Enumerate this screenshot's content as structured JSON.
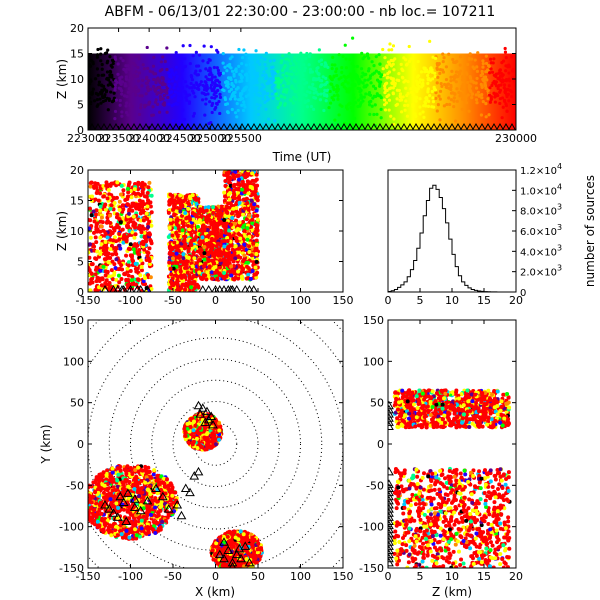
{
  "title": "ABFM - 06/13/01 22:30:00 - 23:00:00 - nb loc.= 107211",
  "chart_data": [
    {
      "id": "time-height",
      "type": "scatter",
      "xlabel": "Time (UT)",
      "ylabel": "Z (km)",
      "xlim": [
        223000,
        230000
      ],
      "ylim": [
        0,
        20
      ],
      "xticks": [
        223000,
        223500,
        224000,
        224500,
        225000,
        225500,
        230000
      ],
      "yticks": [
        0,
        5,
        10,
        15,
        20
      ],
      "color_encoding": "time",
      "colors": [
        "#000000",
        "#5a008c",
        "#2200ff",
        "#00c8ff",
        "#00ff8c",
        "#00ff00",
        "#ffff00",
        "#ff8c00",
        "#ff0000"
      ],
      "series": [
        {
          "type": "band",
          "z_min": 0,
          "z_max": 15,
          "dense_z": [
            5,
            12
          ]
        },
        {
          "type": "stations",
          "z": 0
        }
      ]
    },
    {
      "id": "x-height",
      "type": "scatter",
      "ylabel": "Z (km)",
      "xlim": [
        -150,
        150
      ],
      "ylim": [
        0,
        20
      ],
      "xticks": [
        -150,
        -100,
        -50,
        0,
        50,
        100,
        150
      ],
      "yticks": [
        0,
        5,
        10,
        15,
        20
      ],
      "clusters": [
        {
          "x": [
            -150,
            -75
          ],
          "z": [
            0,
            18
          ]
        },
        {
          "x": [
            -55,
            -20
          ],
          "z": [
            0,
            16
          ]
        },
        {
          "x": [
            -20,
            15
          ],
          "z": [
            2,
            14
          ]
        },
        {
          "x": [
            10,
            50
          ],
          "z": [
            2,
            20
          ]
        }
      ],
      "stations_x": [
        -130,
        -120,
        -115,
        -110,
        -108,
        -100,
        -92,
        -88,
        -80,
        -15,
        -8,
        0,
        5,
        10,
        15,
        18,
        20,
        25,
        35,
        40,
        45
      ]
    },
    {
      "id": "altitude-histogram",
      "type": "bar",
      "xlim": [
        0,
        20
      ],
      "ylim": [
        0,
        12000
      ],
      "xticks": [
        0,
        5,
        10,
        15,
        20
      ],
      "yticks": [
        0,
        2000,
        4000,
        6000,
        8000,
        10000,
        12000
      ],
      "ytick_labels": [
        {
          "mant": "0",
          "exp": "0"
        },
        {
          "mant": "2.0×10",
          "exp": "3"
        },
        {
          "mant": "4.0×10",
          "exp": "3"
        },
        {
          "mant": "6.0×10",
          "exp": "3"
        },
        {
          "mant": "8.0×10",
          "exp": "3"
        },
        {
          "mant": "1.0×10",
          "exp": "4"
        },
        {
          "mant": "1.2×10",
          "exp": "4"
        }
      ],
      "ylabel": "number of sources",
      "bin_width": 0.5,
      "bins_start": [
        0,
        0.5,
        1,
        1.5,
        2,
        2.5,
        3,
        3.5,
        4,
        4.5,
        5,
        5.5,
        6,
        6.5,
        7,
        7.5,
        8,
        8.5,
        9,
        9.5,
        10,
        10.5,
        11,
        11.5,
        12,
        12.5,
        13,
        13.5,
        14,
        14.5,
        15,
        15.5,
        16,
        16.5,
        17,
        17.5,
        18,
        18.5,
        19,
        19.5
      ],
      "values": [
        50,
        120,
        250,
        450,
        700,
        1000,
        1500,
        2200,
        3100,
        4300,
        5800,
        7500,
        9000,
        10200,
        10500,
        10100,
        9300,
        8200,
        6800,
        5200,
        3700,
        2500,
        1600,
        1000,
        650,
        400,
        250,
        160,
        100,
        60,
        40,
        25,
        15,
        10,
        5,
        3,
        2,
        0,
        0,
        0
      ]
    },
    {
      "id": "plan-view",
      "type": "scatter",
      "xlabel": "X (km)",
      "ylabel": "Y (km)",
      "xlim": [
        -150,
        150
      ],
      "ylim": [
        -150,
        150
      ],
      "xticks": [
        -150,
        -100,
        -50,
        0,
        50,
        100,
        150
      ],
      "yticks": [
        -150,
        -100,
        -50,
        0,
        50,
        100,
        150
      ],
      "range_rings_km": [
        25,
        50,
        75,
        100,
        125,
        150,
        175,
        200
      ],
      "clusters": [
        {
          "cx": -15,
          "cy": 15,
          "rx": 22,
          "ry": 22
        },
        {
          "cx": -100,
          "cy": -70,
          "rx": 55,
          "ry": 45
        },
        {
          "cx": 25,
          "cy": -130,
          "rx": 30,
          "ry": 25
        }
      ],
      "stations": [
        [
          -112,
          -65
        ],
        [
          -108,
          -72
        ],
        [
          -103,
          -61
        ],
        [
          -95,
          -68
        ],
        [
          -88,
          -82
        ],
        [
          -80,
          -70
        ],
        [
          -70,
          -55
        ],
        [
          -62,
          -65
        ],
        [
          -55,
          -80
        ],
        [
          -45,
          -75
        ],
        [
          -40,
          -88
        ],
        [
          -130,
          -75
        ],
        [
          -120,
          -85
        ],
        [
          -115,
          -90
        ],
        [
          -105,
          -95
        ],
        [
          -95,
          -78
        ],
        [
          -125,
          -80
        ],
        [
          -20,
          45
        ],
        [
          -15,
          42
        ],
        [
          -10,
          38
        ],
        [
          -5,
          32
        ],
        [
          -12,
          25
        ],
        [
          -18,
          35
        ],
        [
          -8,
          28
        ],
        [
          -3,
          22
        ],
        [
          5,
          -135
        ],
        [
          10,
          -140
        ],
        [
          15,
          -130
        ],
        [
          20,
          -145
        ],
        [
          25,
          -135
        ],
        [
          30,
          -140
        ],
        [
          35,
          -125
        ],
        [
          40,
          -145
        ],
        [
          10,
          -120
        ],
        [
          20,
          -150
        ],
        [
          28,
          -128
        ],
        [
          -35,
          -55
        ],
        [
          -30,
          -60
        ],
        [
          -25,
          -40
        ],
        [
          -20,
          -35
        ]
      ]
    },
    {
      "id": "height-y",
      "type": "scatter",
      "xlabel": "Z (km)",
      "xlim": [
        0,
        20
      ],
      "ylim": [
        -150,
        150
      ],
      "xticks": [
        0,
        5,
        10,
        15,
        20
      ],
      "yticks": [
        -150,
        -100,
        -50,
        0,
        50,
        100,
        150
      ],
      "clusters": [
        {
          "z": [
            1,
            19
          ],
          "y": [
            20,
            65
          ]
        },
        {
          "z": [
            1,
            19
          ],
          "y": [
            -150,
            -30
          ]
        }
      ],
      "stations_y": [
        45,
        40,
        35,
        30,
        25,
        20,
        -35,
        -50,
        -55,
        -60,
        -65,
        -70,
        -75,
        -80,
        -85,
        -90,
        -95,
        -100,
        -105,
        -110,
        -115,
        -120,
        -125,
        -130,
        -135,
        -140,
        -145
      ]
    }
  ]
}
